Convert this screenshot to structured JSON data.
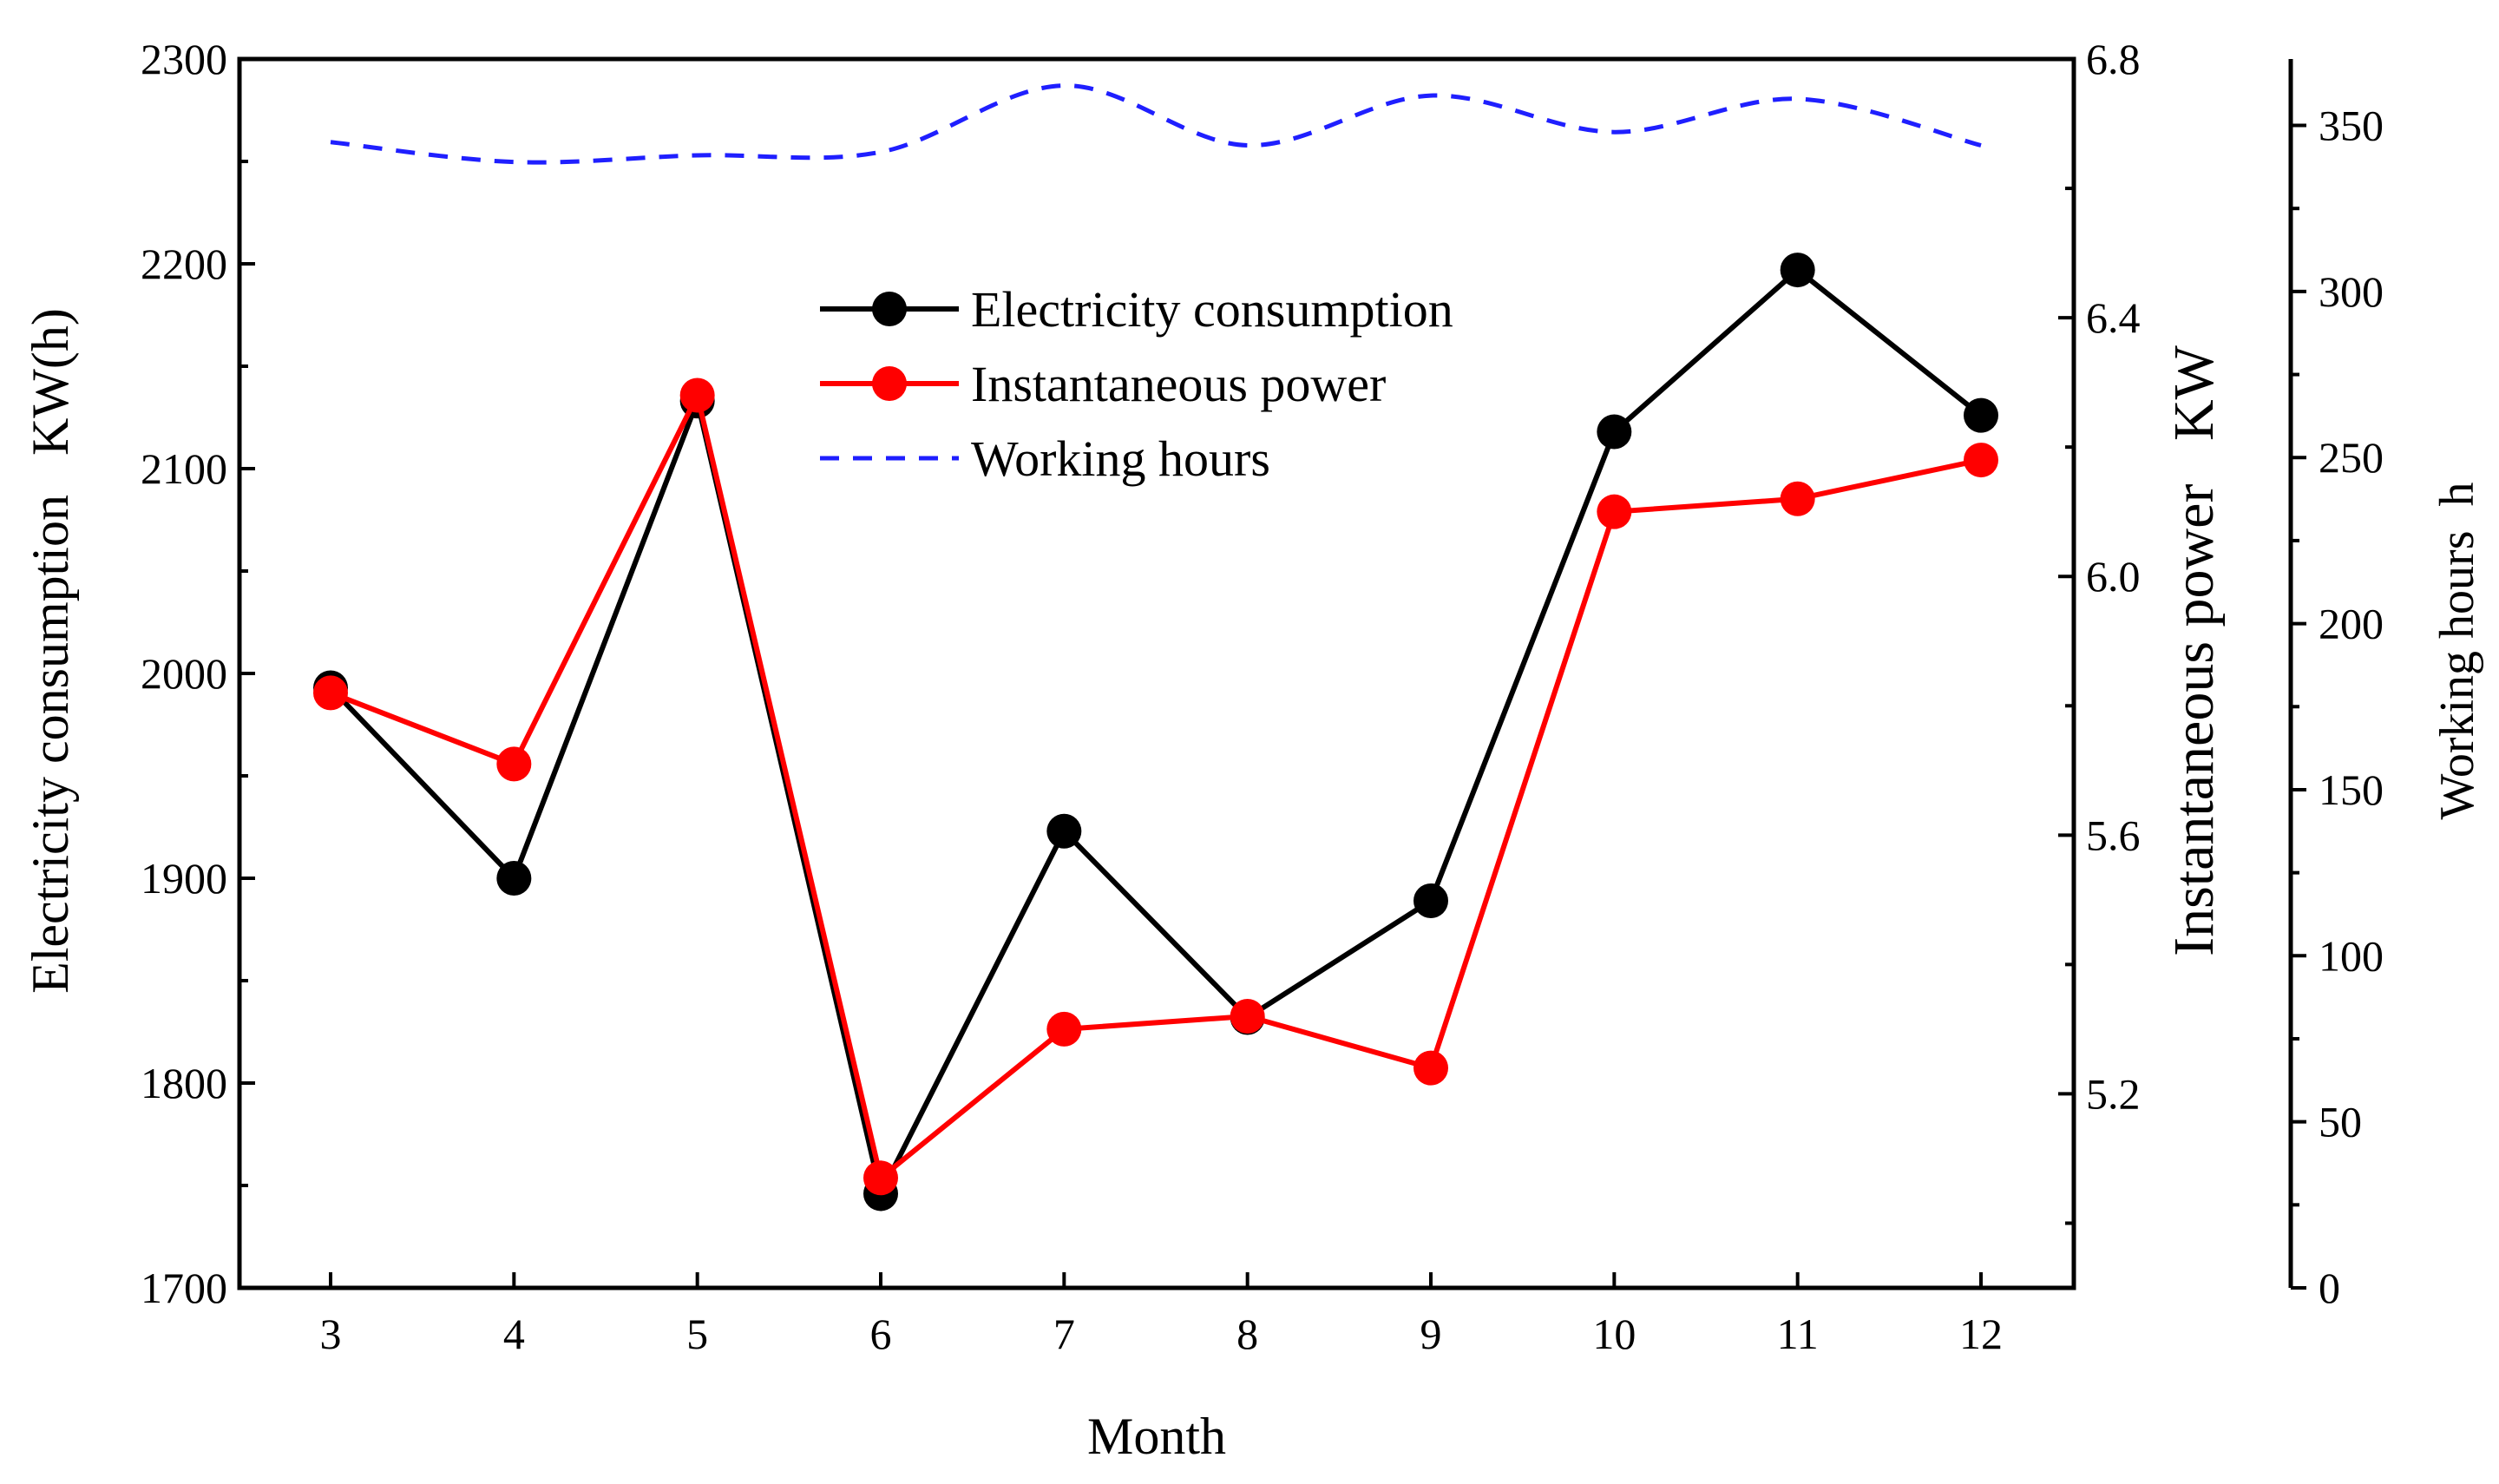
{
  "chart_data": {
    "type": "line",
    "xlabel": "Month",
    "x": [
      3,
      4,
      5,
      6,
      7,
      8,
      9,
      10,
      11,
      12
    ],
    "x_tick_labels": [
      "3",
      "4",
      "5",
      "6",
      "7",
      "8",
      "9",
      "10",
      "11",
      "12"
    ],
    "axes": {
      "left": {
        "label": "Electricity consumption   KW(h)",
        "ylim": [
          1700,
          2300
        ],
        "ticks": [
          1700,
          1800,
          1900,
          2000,
          2100,
          2200,
          2300
        ],
        "tick_labels": [
          "1700",
          "1800",
          "1900",
          "2000",
          "2100",
          "2200",
          "2300"
        ]
      },
      "right": {
        "label": "Instantaneous power   KW",
        "ylim": [
          4.9,
          6.8
        ],
        "ticks": [
          5.2,
          5.6,
          6.0,
          6.4,
          6.8
        ],
        "tick_labels": [
          "5.2",
          "5.6",
          "6.0",
          "6.4",
          "6.8"
        ]
      },
      "right2": {
        "label": "Working hours  h",
        "ylim": [
          0,
          370
        ],
        "ticks": [
          0,
          50,
          100,
          150,
          200,
          250,
          300,
          350
        ],
        "tick_labels": [
          "0",
          "50",
          "100",
          "150",
          "200",
          "250",
          "300",
          "350"
        ]
      }
    },
    "series": [
      {
        "name": "Electricity consumption",
        "axis": "left",
        "color": "#000000",
        "marker": "circle",
        "values": [
          1993,
          1900,
          2133,
          1746,
          1923,
          1832,
          1889,
          2118,
          2197,
          2126
        ]
      },
      {
        "name": "Instantaneous power",
        "axis": "right",
        "color": "#ff0000",
        "marker": "circle",
        "values": [
          5.82,
          5.71,
          6.28,
          5.07,
          5.3,
          5.32,
          5.24,
          6.1,
          6.12,
          6.18
        ]
      },
      {
        "name": "Working hours",
        "axis": "right2",
        "color": "#1f1fff",
        "style": "dashed",
        "values": [
          345,
          339,
          341,
          342,
          362,
          344,
          359,
          348,
          358,
          344
        ]
      }
    ],
    "legend": {
      "position": "top-center",
      "entries": [
        "Electricity consumption",
        "Instantaneous power",
        "Working hours"
      ]
    }
  }
}
